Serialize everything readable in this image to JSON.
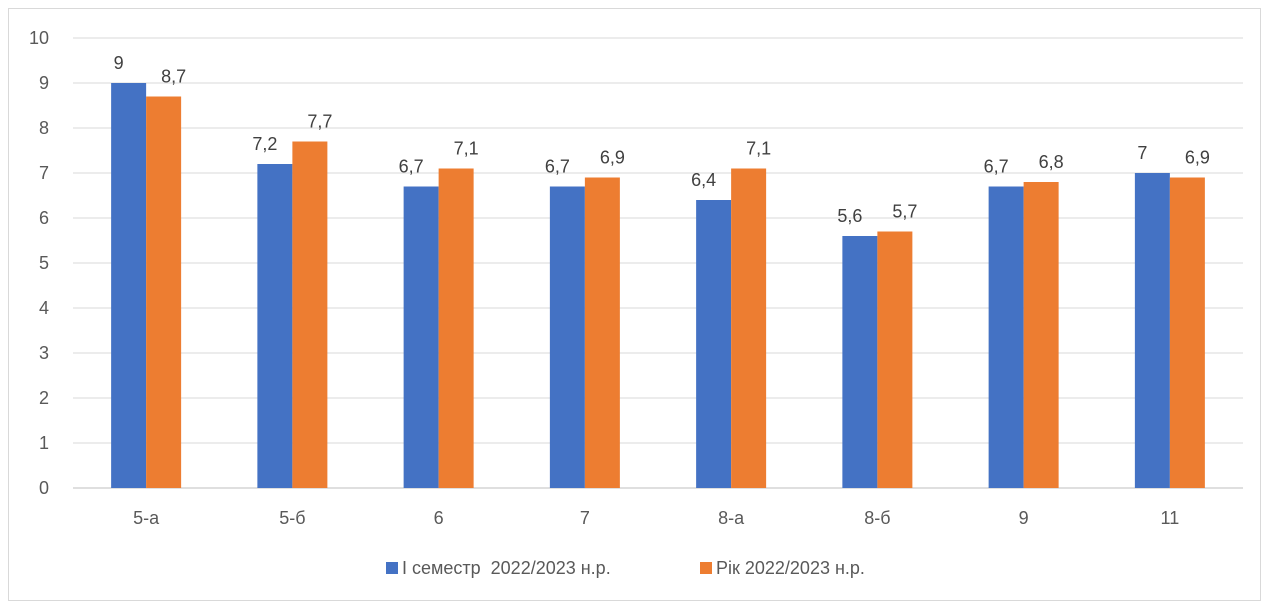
{
  "chart_data": {
    "type": "bar",
    "categories": [
      "5-а",
      "5-б",
      "6",
      "7",
      "8-а",
      "8-б",
      "9",
      "11"
    ],
    "series": [
      {
        "name": "І семестр  2022/2023 н.р.",
        "values": [
          9,
          7.2,
          6.7,
          6.7,
          6.4,
          5.6,
          6.7,
          7
        ],
        "labels": [
          "9",
          "7,2",
          "6,7",
          "6,7",
          "6,4",
          "5,6",
          "6,7",
          "7"
        ],
        "color": "#4472C4"
      },
      {
        "name": "Рік 2022/2023 н.р.",
        "values": [
          8.7,
          7.7,
          7.1,
          6.9,
          7.1,
          5.7,
          6.8,
          6.9
        ],
        "labels": [
          "8,7",
          "7,7",
          "7,1",
          "6,9",
          "7,1",
          "5,7",
          "6,8",
          "6,9"
        ],
        "color": "#ED7D31"
      }
    ],
    "yticks": [
      "0",
      "1",
      "2",
      "3",
      "4",
      "5",
      "6",
      "7",
      "8",
      "9",
      "10"
    ],
    "ylim": [
      0,
      10
    ],
    "grid": true,
    "legend_position": "bottom"
  }
}
